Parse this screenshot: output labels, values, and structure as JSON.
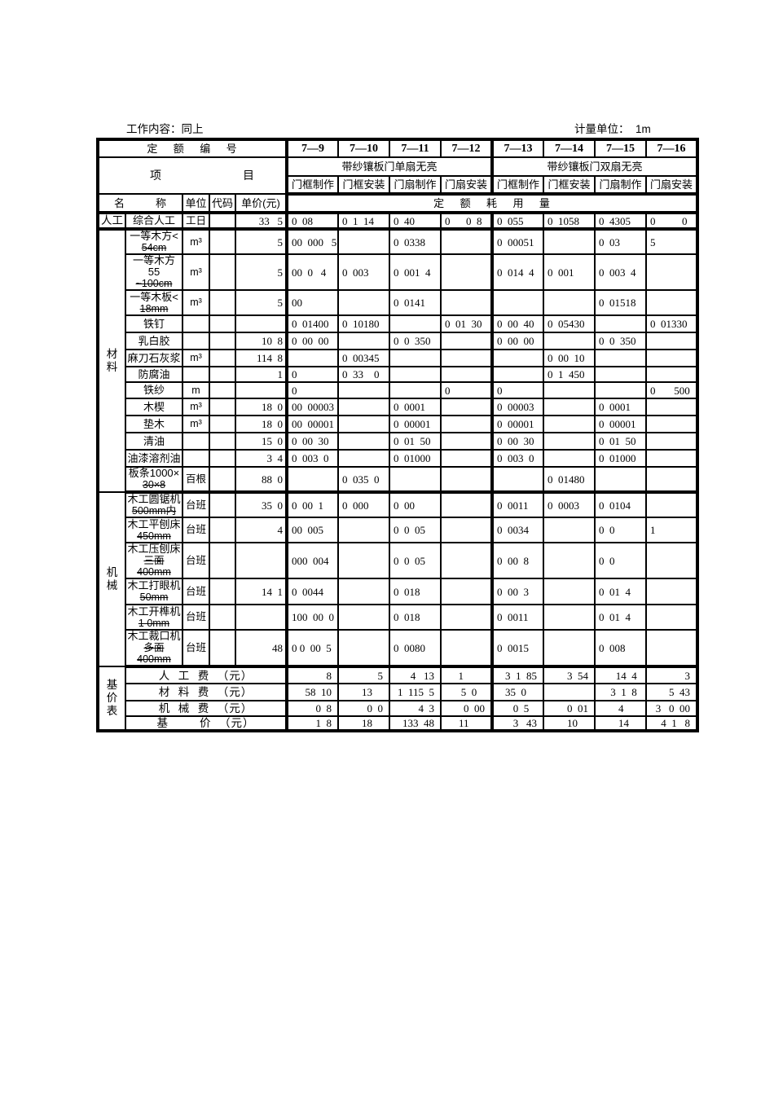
{
  "page": {
    "work_content": "工作内容：同上",
    "unit_note": "计量单位：  1m"
  },
  "header": {
    "quota_no_label": "定    额    编    号",
    "codes": [
      "7—9",
      "7—10",
      "7—11",
      "7—12",
      "7—13",
      "7—14",
      "7—15",
      "7—16"
    ],
    "project_left": "项",
    "project_right": "目",
    "groups": [
      "带纱镶板门单扇无亮",
      "带纱镶板门双扇无亮"
    ],
    "sub_headers": [
      "门框制作",
      "门框安装",
      "门扇制作",
      "门扇安装",
      "门框制作",
      "门框安装",
      "门扇制作",
      "门扇安装"
    ],
    "name_label": "名        称",
    "unit_label": "单位",
    "code_label": "代码",
    "price_label": "单价(元)",
    "consume_label": "定    额    耗    用    量"
  },
  "body_rows": [
    {
      "group": "人工",
      "group_rows": 1,
      "name": "综合人工",
      "name2": "",
      "unit": "工日",
      "code": "",
      "price": "33   5",
      "values": [
        "0  08",
        "0  1  14",
        "0  40",
        "0      0  8",
        "0  055",
        "0  1058",
        "0  4305",
        "0          0"
      ]
    },
    {
      "group": "材\n料",
      "group_rows": 13,
      "name": "一等木方<",
      "name2": "54cm",
      "unit": "m³",
      "code": "",
      "price": "5",
      "values": [
        "00  000   5",
        "",
        "0  0338",
        "",
        "0  00051",
        "",
        "0  03",
        "5"
      ]
    },
    {
      "name": "一等木方55",
      "name2": "~100cm",
      "unit": "m³",
      "code": "",
      "price": "5",
      "values": [
        "00  0   4",
        "0  003",
        "0  001  4",
        "",
        "0  014  4",
        "0  001",
        "0  003  4",
        ""
      ]
    },
    {
      "name": "一等木板<",
      "name2": "18mm",
      "unit": "m³",
      "code": "",
      "price": "5",
      "values": [
        "00",
        "",
        "0  0141",
        "",
        "",
        "",
        "0  01518",
        ""
      ]
    },
    {
      "name": "铁钉",
      "name2": "",
      "unit": "",
      "code": "",
      "price": "",
      "values": [
        "0  01400",
        "0  10180",
        "",
        "0  01  30",
        "0  00  40",
        "0  05430",
        "",
        "0  01330"
      ]
    },
    {
      "name": "乳白胶",
      "name2": "",
      "unit": "",
      "code": "",
      "price": "10  8",
      "values": [
        "0  00  00",
        "",
        "0  0  350",
        "",
        "0  00  00",
        "",
        "0  0  350",
        ""
      ]
    },
    {
      "name": "麻刀石灰浆",
      "name2": "",
      "unit": "m³",
      "code": "",
      "price": "114  8",
      "values": [
        "",
        "0  00345",
        "",
        "",
        "",
        "0  00  10",
        "",
        ""
      ]
    },
    {
      "name": "防腐油",
      "name2": "",
      "unit": "",
      "code": "",
      "price": "1",
      "values": [
        "0",
        "0  33    0",
        "",
        "",
        "",
        "0  1  450",
        "",
        ""
      ]
    },
    {
      "name": "铁纱",
      "name2": "",
      "unit": "m",
      "code": "",
      "price": "",
      "values": [
        "0",
        "",
        "",
        "0",
        "0",
        "",
        "",
        "0       500"
      ]
    },
    {
      "name": "木楔",
      "name2": "",
      "unit": "m³",
      "code": "",
      "price": "18  0",
      "values": [
        "00  00003",
        "",
        "0  0001",
        "",
        "0  00003",
        "",
        "0  0001",
        ""
      ]
    },
    {
      "name": "垫木",
      "name2": "",
      "unit": "m³",
      "code": "",
      "price": "18  0",
      "values": [
        "00  00001",
        "",
        "0  00001",
        "",
        "0  00001",
        "",
        "0  00001",
        ""
      ]
    },
    {
      "name": "清油",
      "name2": "",
      "unit": "",
      "code": "",
      "price": "15  0",
      "values": [
        "0  00  30",
        "",
        "0  01  50",
        "",
        "0  00  30",
        "",
        "0  01  50",
        ""
      ]
    },
    {
      "name": "油漆溶剂油",
      "name2": "",
      "unit": "",
      "code": "",
      "price": "3  4",
      "values": [
        "0  003  0",
        "",
        "0  01000",
        "",
        "0  003  0",
        "",
        "0  01000",
        ""
      ]
    },
    {
      "name": "板条1000×",
      "name2": "30×8",
      "unit": "百根",
      "code": "",
      "price": "88  0",
      "values": [
        "",
        "0  035  0",
        "",
        "",
        "",
        "0  01480",
        "",
        ""
      ]
    },
    {
      "group": "机\n械",
      "group_rows": 6,
      "name": "木工圆锯机",
      "name2": "500mm内",
      "unit": "台班",
      "code": "",
      "price": "35  0",
      "values": [
        "0  00  1",
        "0  000",
        "0  00",
        "",
        "0  0011",
        "0  0003",
        "0  0104",
        ""
      ]
    },
    {
      "name": "木工平刨床",
      "name2": "450mm",
      "unit": "台班",
      "code": "",
      "price": "4",
      "values": [
        "00  005",
        "",
        "0  0  05",
        "",
        "0  0034",
        "",
        "0  0",
        "1"
      ]
    },
    {
      "name": "木工压刨床",
      "name2": "三面400mm",
      "unit": "台班",
      "code": "",
      "price": "",
      "values": [
        "000  004",
        "",
        "0  0  05",
        "",
        "0  00  8",
        "",
        "0  0",
        ""
      ]
    },
    {
      "name": "木工打眼机",
      "name2": "50mm",
      "unit": "台班",
      "code": "",
      "price": "14  1",
      "values": [
        "0  0044",
        "",
        "0  018",
        "",
        "0  00  3",
        "",
        "0  01  4",
        ""
      ]
    },
    {
      "name": "木工开榫机",
      "name2": "1  0mm",
      "unit": "台班",
      "code": "",
      "price": "",
      "values": [
        "100  00  0",
        "",
        "0  018",
        "",
        "0  0011",
        "",
        "0  01  4",
        ""
      ]
    },
    {
      "name": "木工裁口机",
      "name2": "多面400mm",
      "unit": "台班",
      "code": "",
      "price": "48",
      "values": [
        "0 0  00  5",
        "",
        "0  0080",
        "",
        "0  0015",
        "",
        "0  008",
        ""
      ]
    },
    {
      "group": "基\n价\n表",
      "group_rows": 4,
      "wide": true,
      "name": "人  工  费  （元）",
      "values": [
        "8",
        "5",
        "4   13",
        "1        ",
        "3  1  85",
        "3  54",
        "14  4 ",
        "3"
      ]
    },
    {
      "wide": true,
      "name": "材  料  费  （元）",
      "values": [
        "58  10",
        "13    ",
        "1  115  5",
        "5  0   ",
        "35  0    ",
        "",
        "3  1  8 ",
        "5  43"
      ]
    },
    {
      "wide": true,
      "name": "机  械  费  （元）",
      "values": [
        "0  8",
        "0  0",
        "4  3",
        "0  00",
        "0  5   ",
        "0  01",
        "4      ",
        "3   0  00"
      ]
    },
    {
      "wide": true,
      "name": "基        价  （元）",
      "values": [
        "1  8",
        "18    ",
        "133  48",
        "11      ",
        "3   43",
        "10    ",
        "14    ",
        "4  1   8"
      ]
    }
  ]
}
